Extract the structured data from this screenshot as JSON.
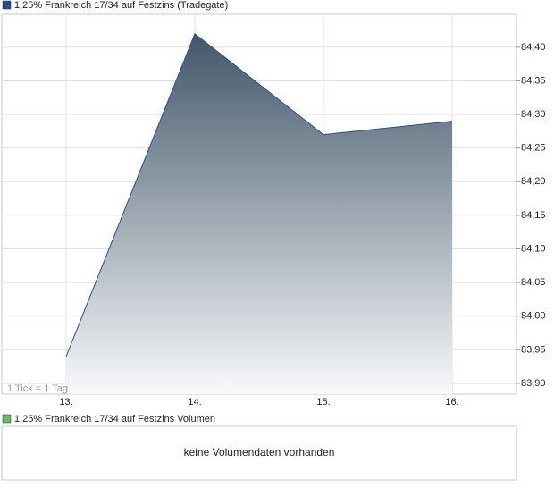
{
  "chart_data": {
    "type": "area",
    "categories": [
      "13.",
      "14.",
      "15.",
      "16."
    ],
    "series": [
      {
        "name": "1,25% Frankreich 17/34 auf Festzins (Tradegate)",
        "color": "#2a4d8f",
        "values": [
          83.94,
          84.42,
          84.27,
          84.29
        ]
      }
    ],
    "ylim": [
      83.884,
      84.449
    ],
    "yticks": [
      {
        "value": 83.9,
        "label": "83,90"
      },
      {
        "value": 83.95,
        "label": "83,95"
      },
      {
        "value": 84.0,
        "label": "84,00"
      },
      {
        "value": 84.05,
        "label": "84,05"
      },
      {
        "value": 84.1,
        "label": "84,10"
      },
      {
        "value": 84.15,
        "label": "84,15"
      },
      {
        "value": 84.2,
        "label": "84,20"
      },
      {
        "value": 84.25,
        "label": "84,25"
      },
      {
        "value": 84.3,
        "label": "84,30"
      },
      {
        "value": 84.35,
        "label": "84,35"
      },
      {
        "value": 84.4,
        "label": "84,40"
      }
    ],
    "grid": true,
    "annotation": "1 Tick = 1 Tag"
  },
  "volume_panel": {
    "legend": "1,25% Frankreich 17/34 auf Festzins Volumen",
    "legend_color": "#66bb66",
    "message": "keine Volumendaten vorhanden"
  }
}
